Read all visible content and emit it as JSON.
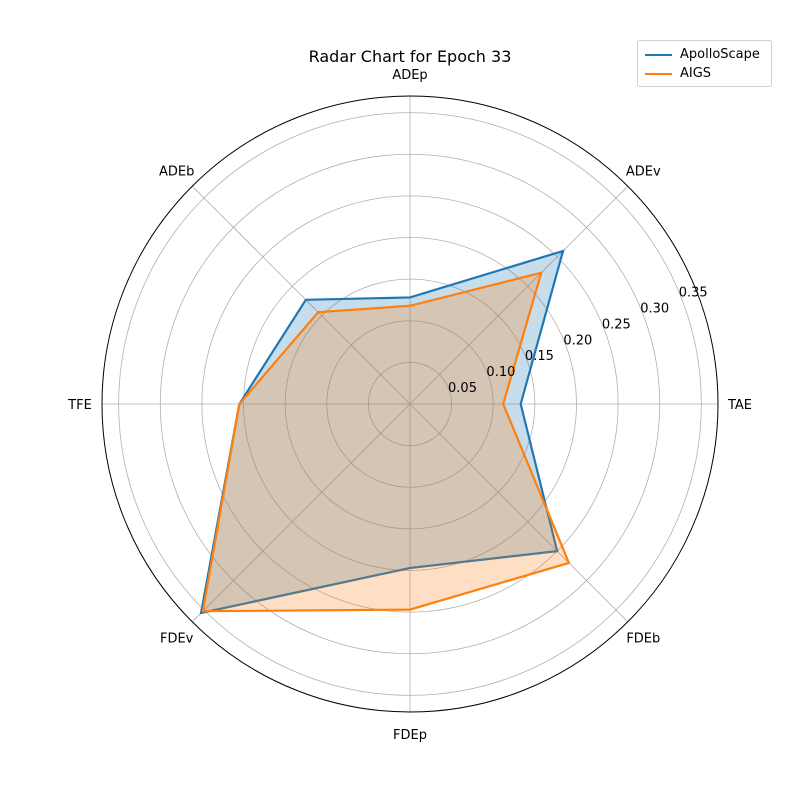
{
  "chart_data": {
    "type": "radar",
    "title": "Radar Chart for Epoch 33",
    "axes": [
      "TAE",
      "ADEv",
      "ADEp",
      "ADEb",
      "TFE",
      "FDEv",
      "FDEp",
      "FDEb"
    ],
    "rlim": [
      0,
      0.37
    ],
    "rticks": [
      0.05,
      0.1,
      0.15,
      0.2,
      0.25,
      0.3,
      0.35
    ],
    "rtick_labels": [
      "0.05",
      "0.10",
      "0.15",
      "0.20",
      "0.25",
      "0.30",
      "0.35"
    ],
    "grid": true,
    "legend_position": "top-right",
    "series": [
      {
        "name": "ApolloScape",
        "color": "#1f77b4",
        "values": [
          0.133,
          0.26,
          0.128,
          0.177,
          0.205,
          0.355,
          0.197,
          0.25
        ]
      },
      {
        "name": "AIGS",
        "color": "#ff7f0e",
        "values": [
          0.112,
          0.223,
          0.118,
          0.156,
          0.205,
          0.352,
          0.247,
          0.27
        ]
      }
    ]
  }
}
